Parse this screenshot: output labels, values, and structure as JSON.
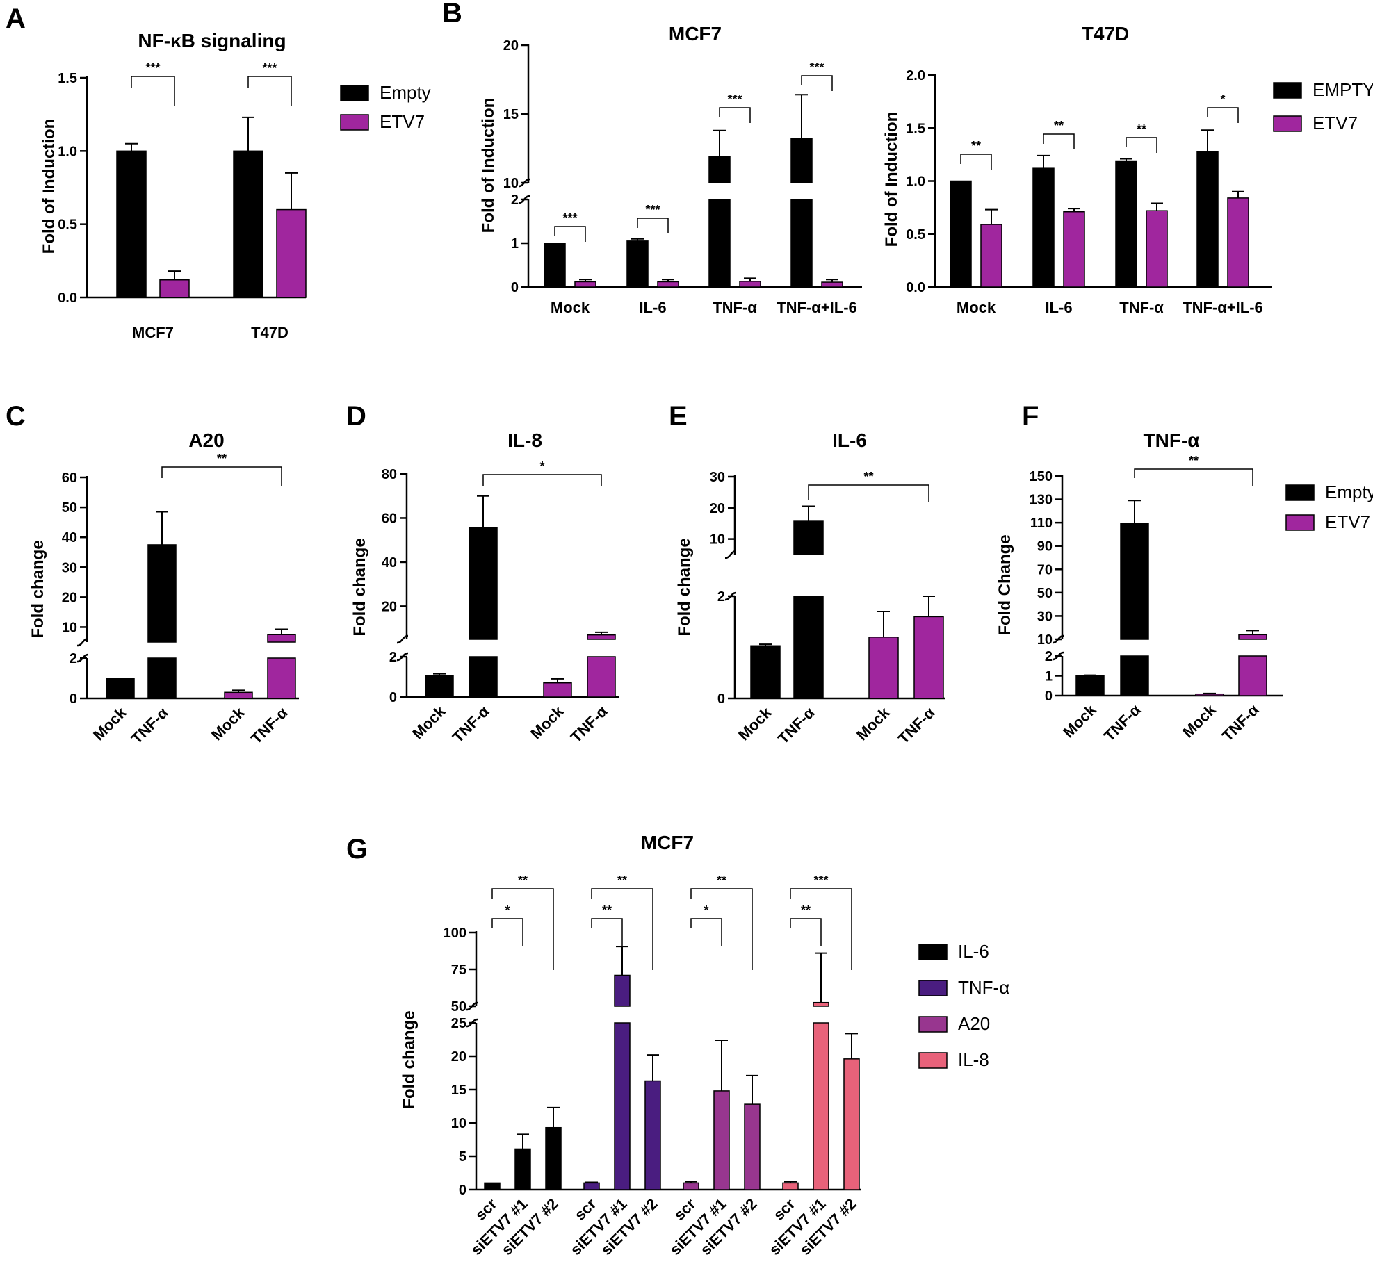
{
  "colors": {
    "Empty": "#000000",
    "ETV7": "#a0269e",
    "IL6": "#000000",
    "TNFa": "#4a1d80",
    "A20": "#98368f",
    "IL8": "#e8627a"
  },
  "chart_data": [
    {
      "id": "A",
      "panel_label": "A",
      "type": "bar",
      "title": "NF-κB signaling",
      "ylabel": "Fold of Induction",
      "xlabel": "",
      "categories": [
        "MCF7",
        "T47D"
      ],
      "series": [
        {
          "name": "Empty",
          "values": [
            1.0,
            1.0
          ],
          "errors": [
            0.05,
            0.23
          ]
        },
        {
          "name": "ETV7",
          "values": [
            0.12,
            0.6
          ],
          "errors": [
            0.06,
            0.25
          ]
        }
      ],
      "ylim": [
        0,
        1.5
      ],
      "yticks": [
        "0.0",
        "0.5",
        "1.0",
        "1.5"
      ],
      "legend": [
        "Empty",
        "ETV7"
      ],
      "significance": [
        "***",
        "***"
      ]
    },
    {
      "id": "B1",
      "panel_label": "B",
      "type": "bar",
      "title": "MCF7",
      "ylabel": "Fold of Induction",
      "xlabel": "",
      "categories": [
        "Mock",
        "IL-6",
        "TNF-α",
        "TNF-α+IL-6"
      ],
      "series": [
        {
          "name": "Empty",
          "values": [
            1.0,
            1.05,
            11.9,
            13.2
          ],
          "errors": [
            0,
            0.05,
            1.9,
            3.2
          ]
        },
        {
          "name": "ETV7",
          "values": [
            0.12,
            0.12,
            0.13,
            0.11
          ],
          "errors": [
            0.05,
            0.05,
            0.07,
            0.06
          ]
        }
      ],
      "broken_axis": {
        "lower": [
          0,
          2
        ],
        "upper": [
          10,
          20
        ]
      },
      "yticks_lower": [
        "0",
        "1",
        "2"
      ],
      "yticks_upper": [
        "10",
        "15",
        "20"
      ],
      "significance": [
        "***",
        "***",
        "***",
        "***"
      ]
    },
    {
      "id": "B2",
      "type": "bar",
      "title": "T47D",
      "ylabel": "Fold of Induction",
      "xlabel": "",
      "categories": [
        "Mock",
        "IL-6",
        "TNF-α",
        "TNF-α+IL-6"
      ],
      "series": [
        {
          "name": "EMPTY",
          "values": [
            1.0,
            1.12,
            1.19,
            1.28
          ],
          "errors": [
            0,
            0.12,
            0.02,
            0.2
          ]
        },
        {
          "name": "ETV7",
          "values": [
            0.59,
            0.71,
            0.72,
            0.84
          ],
          "errors": [
            0.14,
            0.03,
            0.07,
            0.06
          ]
        }
      ],
      "ylim": [
        0,
        2.0
      ],
      "yticks": [
        "0.0",
        "0.5",
        "1.0",
        "1.5",
        "2.0"
      ],
      "legend": [
        "EMPTY",
        "ETV7"
      ],
      "significance": [
        "**",
        "**",
        "**",
        "*"
      ]
    },
    {
      "id": "C",
      "panel_label": "C",
      "type": "bar",
      "title": "A20",
      "ylabel": "Fold change",
      "xlabel": "",
      "categories": [
        "Mock",
        "TNF-α",
        "Mock",
        "TNF-α"
      ],
      "groups": [
        "Empty",
        "Empty",
        "ETV7",
        "ETV7"
      ],
      "values": [
        1.0,
        37.5,
        0.3,
        7.5
      ],
      "errors": [
        0,
        11,
        0.1,
        1.8
      ],
      "broken_axis": {
        "lower": [
          0,
          2
        ],
        "upper": [
          5,
          60
        ]
      },
      "yticks_lower": [
        "0",
        "2"
      ],
      "yticks_upper": [
        "10",
        "20",
        "30",
        "40",
        "50",
        "60"
      ],
      "significance": [
        "**"
      ]
    },
    {
      "id": "D",
      "panel_label": "D",
      "type": "bar",
      "title": "IL-8",
      "ylabel": "Fold change",
      "xlabel": "",
      "categories": [
        "Mock",
        "TNF-α",
        "Mock",
        "TNF-α"
      ],
      "groups": [
        "Empty",
        "Empty",
        "ETV7",
        "ETV7"
      ],
      "values": [
        1.05,
        55.5,
        0.7,
        7.0
      ],
      "errors": [
        0.1,
        14.5,
        0.2,
        1.2
      ],
      "broken_axis": {
        "lower": [
          0,
          2
        ],
        "upper": [
          5,
          80
        ]
      },
      "yticks_lower": [
        "0",
        "2"
      ],
      "yticks_upper": [
        "20",
        "40",
        "60",
        "80"
      ],
      "significance": [
        "*"
      ]
    },
    {
      "id": "E",
      "panel_label": "E",
      "type": "bar",
      "title": "IL-6",
      "ylabel": "Fold change",
      "xlabel": "",
      "categories": [
        "Mock",
        "TNF-α",
        "Mock",
        "TNF-α"
      ],
      "groups": [
        "Empty",
        "Empty",
        "ETV7",
        "ETV7"
      ],
      "values": [
        1.03,
        15.7,
        1.2,
        1.6
      ],
      "errors": [
        0.03,
        4.8,
        0.5,
        0.4
      ],
      "broken_axis": {
        "lower": [
          0,
          2
        ],
        "upper": [
          5,
          30
        ]
      },
      "yticks_lower": [
        "0",
        "2"
      ],
      "yticks_upper": [
        "10",
        "20",
        "30"
      ],
      "significance": [
        "**"
      ]
    },
    {
      "id": "F",
      "panel_label": "F",
      "type": "bar",
      "title": "TNF-α",
      "ylabel": "Fold Change",
      "xlabel": "",
      "categories": [
        "Mock",
        "TNF-α",
        "Mock",
        "TNF-α"
      ],
      "groups": [
        "Empty",
        "Empty",
        "ETV7",
        "ETV7"
      ],
      "values": [
        1.0,
        109.5,
        0.08,
        14.0
      ],
      "errors": [
        0.03,
        19.5,
        0.03,
        3.5
      ],
      "broken_axis": {
        "lower": [
          0,
          2
        ],
        "upper": [
          10,
          150
        ]
      },
      "yticks_lower": [
        "0",
        "1",
        "2"
      ],
      "yticks_upper": [
        "10",
        "30",
        "50",
        "70",
        "90",
        "110",
        "130",
        "150"
      ],
      "legend": [
        "Empty",
        "ETV7"
      ],
      "significance": [
        "**"
      ]
    },
    {
      "id": "G",
      "panel_label": "G",
      "type": "bar",
      "title": "MCF7",
      "ylabel": "Fold change",
      "xlabel": "",
      "categories": [
        "scr",
        "siETV7 #1",
        "siETV7 #2"
      ],
      "series": [
        {
          "name": "IL-6",
          "values": [
            1.0,
            6.1,
            9.3
          ],
          "errors": [
            0,
            2.2,
            3.0
          ]
        },
        {
          "name": "TNF-α",
          "values": [
            1.0,
            71.0,
            16.3
          ],
          "errors": [
            0.1,
            19.5,
            3.9
          ]
        },
        {
          "name": "A20",
          "values": [
            1.0,
            14.8,
            12.8
          ],
          "errors": [
            0.2,
            7.6,
            4.3
          ]
        },
        {
          "name": "IL-8",
          "values": [
            1.0,
            52.5,
            19.6
          ],
          "errors": [
            0.2,
            33.5,
            3.8
          ]
        }
      ],
      "broken_axis": {
        "lower": [
          0,
          25
        ],
        "upper": [
          50,
          100
        ]
      },
      "yticks_lower": [
        "0",
        "5",
        "10",
        "15",
        "20",
        "25"
      ],
      "yticks_upper": [
        "50",
        "75",
        "100"
      ],
      "legend": [
        "IL-6",
        "TNF-α",
        "A20",
        "IL-8"
      ],
      "significance": [
        [
          "*",
          "**"
        ],
        [
          "**",
          "**"
        ],
        [
          "*",
          "**"
        ],
        [
          "**",
          "***"
        ]
      ]
    }
  ]
}
